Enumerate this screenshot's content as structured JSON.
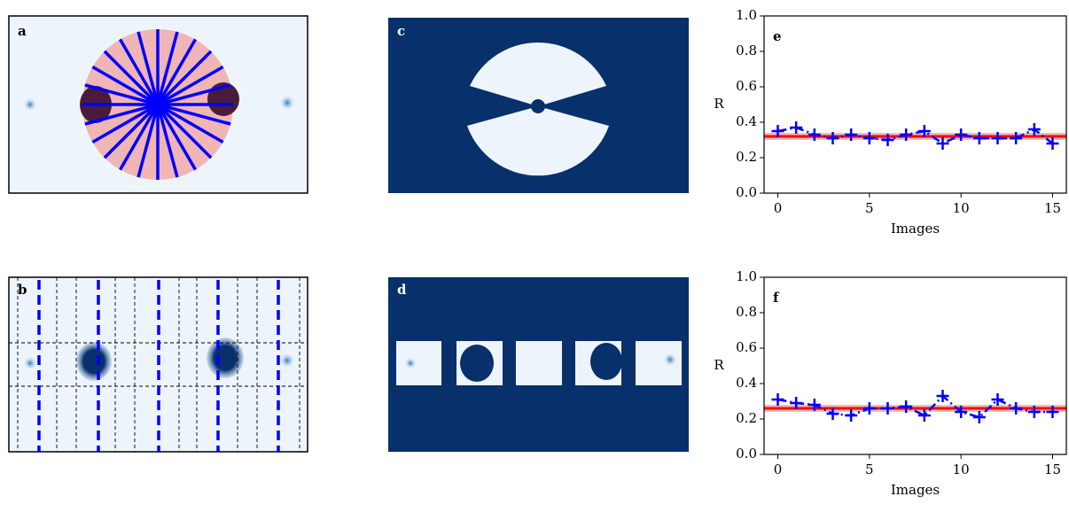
{
  "panel_labels": [
    "a",
    "b",
    "c",
    "d"
  ],
  "chart_data": [
    {
      "type": "line",
      "label": "e",
      "xlabel": "Images",
      "ylabel": "R",
      "x": [
        0,
        1,
        2,
        3,
        4,
        5,
        6,
        7,
        8,
        9,
        10,
        11,
        12,
        13,
        14,
        15
      ],
      "series": [
        {
          "color": "#0000ff",
          "marker": "+",
          "values": [
            0.35,
            0.37,
            0.33,
            0.31,
            0.33,
            0.31,
            0.3,
            0.33,
            0.35,
            0.28,
            0.33,
            0.31,
            0.31,
            0.31,
            0.36,
            0.28
          ]
        }
      ],
      "mean": 0.32,
      "mean_color": "#ff0000",
      "band": [
        0.3,
        0.34
      ],
      "band_color": "#f4a6a6",
      "xlim": [
        -0.75,
        15.75
      ],
      "ylim": [
        0,
        1
      ],
      "xticks": [
        0,
        5,
        10,
        15
      ],
      "yticks": [
        {
          "value": 0,
          "label": "0.0"
        },
        {
          "value": 0.2,
          "label": "0.2"
        },
        {
          "value": 0.4,
          "label": "0.4"
        },
        {
          "value": 0.6,
          "label": "0.6"
        },
        {
          "value": 0.8,
          "label": "0.8"
        },
        {
          "value": 1,
          "label": "1.0"
        }
      ]
    },
    {
      "type": "line",
      "label": "f",
      "xlabel": "Images",
      "ylabel": "R",
      "x": [
        0,
        1,
        2,
        3,
        4,
        5,
        6,
        7,
        8,
        9,
        10,
        11,
        12,
        13,
        14,
        15
      ],
      "series": [
        {
          "color": "#0000ff",
          "marker": "+",
          "values": [
            0.31,
            0.29,
            0.28,
            0.23,
            0.22,
            0.26,
            0.26,
            0.27,
            0.22,
            0.33,
            0.24,
            0.21,
            0.31,
            0.26,
            0.24,
            0.24
          ]
        }
      ],
      "mean": 0.26,
      "mean_color": "#ff0000",
      "band": [
        0.24,
        0.28
      ],
      "band_color": "#f4a6a6",
      "xlim": [
        -0.75,
        15.75
      ],
      "ylim": [
        0,
        1
      ],
      "xticks": [
        0,
        5,
        10,
        15
      ],
      "yticks": [
        {
          "value": 0,
          "label": "0.0"
        },
        {
          "value": 0.2,
          "label": "0.2"
        },
        {
          "value": 0.4,
          "label": "0.4"
        },
        {
          "value": 0.6,
          "label": "0.6"
        },
        {
          "value": 0.8,
          "label": "0.8"
        },
        {
          "value": 1,
          "label": "1.0"
        }
      ]
    }
  ]
}
